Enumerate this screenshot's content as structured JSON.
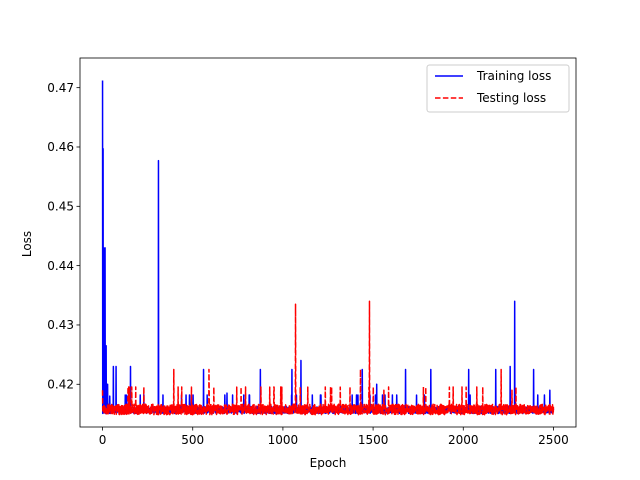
{
  "chart_data": {
    "type": "line",
    "xlabel": "Epoch",
    "ylabel": "Loss",
    "xlim": [
      -125,
      2625
    ],
    "ylim": [
      0.4128,
      0.475
    ],
    "xticks": [
      0,
      500,
      1000,
      1500,
      2000,
      2500
    ],
    "xtick_labels": [
      "0",
      "500",
      "1000",
      "1500",
      "2000",
      "2500"
    ],
    "yticks": [
      0.42,
      0.43,
      0.44,
      0.45,
      0.46,
      0.47
    ],
    "ytick_labels": [
      "0.42",
      "0.43",
      "0.44",
      "0.45",
      "0.46",
      "0.47"
    ],
    "grid": false,
    "legend_position": "top-right",
    "series": [
      {
        "name": "Training loss",
        "color": "#0000ff",
        "style": "solid",
        "baseline": 0.4155,
        "noise": 0.0012,
        "points": [
          [
            0,
            0.4712
          ],
          [
            3,
            0.4597
          ],
          [
            6,
            0.443
          ],
          [
            10,
            0.433
          ],
          [
            14,
            0.443
          ],
          [
            20,
            0.4265
          ],
          [
            28,
            0.42
          ],
          [
            40,
            0.418
          ],
          [
            60,
            0.423
          ],
          [
            75,
            0.423
          ],
          [
            155,
            0.423
          ],
          [
            310,
            0.4577
          ],
          [
            560,
            0.4225
          ],
          [
            690,
            0.4185
          ],
          [
            875,
            0.4225
          ],
          [
            1050,
            0.4225
          ],
          [
            1100,
            0.424
          ],
          [
            1440,
            0.4225
          ],
          [
            1520,
            0.42
          ],
          [
            1680,
            0.4225
          ],
          [
            1820,
            0.4225
          ],
          [
            2030,
            0.4225
          ],
          [
            2180,
            0.4225
          ],
          [
            2260,
            0.423
          ],
          [
            2285,
            0.434
          ],
          [
            2390,
            0.4225
          ],
          [
            2480,
            0.419
          ]
        ]
      },
      {
        "name": "Testing loss",
        "color": "#ff0000",
        "style": "dashed",
        "baseline": 0.4155,
        "noise": 0.0018,
        "points": [
          [
            0,
            0.419
          ],
          [
            395,
            0.4225
          ],
          [
            590,
            0.4225
          ],
          [
            1070,
            0.4335
          ],
          [
            1430,
            0.4225
          ],
          [
            1480,
            0.434
          ],
          [
            1560,
            0.419
          ],
          [
            2210,
            0.4225
          ],
          [
            2270,
            0.419
          ]
        ]
      }
    ]
  }
}
